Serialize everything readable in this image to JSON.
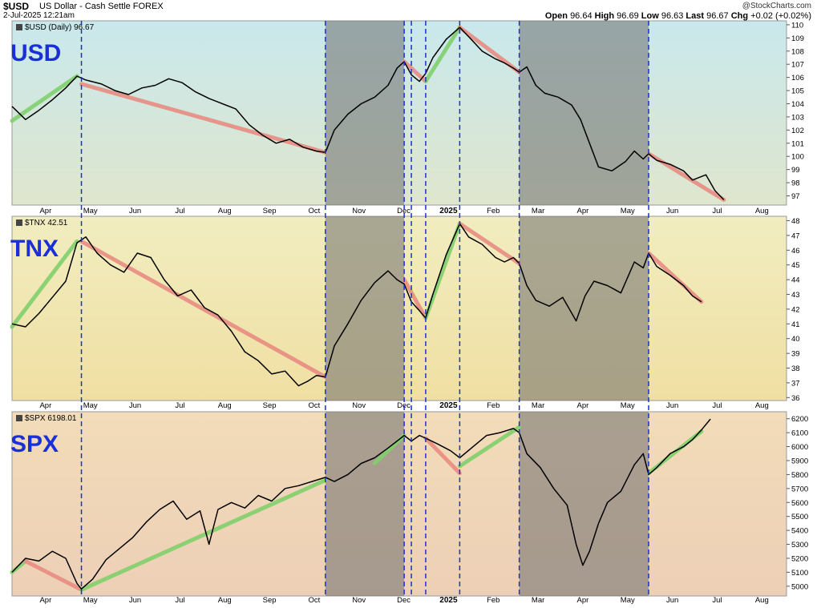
{
  "header": {
    "symbol": "$USD",
    "description": "US Dollar - Cash Settle FOREX",
    "timestamp": "2-Jul-2025 12:21am",
    "credit": "@StockCharts.com",
    "ohlc": {
      "open_label": "Open",
      "open": "96.64",
      "high_label": "High",
      "high": "96.69",
      "low_label": "Low",
      "low": "96.63",
      "last_label": "Last",
      "last": "96.67",
      "chg_label": "Chg",
      "chg": "+0.02 (+0.02%)"
    }
  },
  "x_axis": {
    "labels": [
      "Apr",
      "May",
      "Jun",
      "Jul",
      "Aug",
      "Sep",
      "Oct",
      "Nov",
      "Dec",
      "2025",
      "Feb",
      "Mar",
      "Apr",
      "May",
      "Jun",
      "Jul",
      "Aug"
    ],
    "positions": [
      0.75,
      1.75,
      2.75,
      3.75,
      4.75,
      5.75,
      6.75,
      7.75,
      8.75,
      9.75,
      10.75,
      11.75,
      12.75,
      13.75,
      14.75,
      15.75,
      16.75
    ]
  },
  "shaded_periods": [
    {
      "from": 7.0,
      "to": 8.76
    },
    {
      "from": 11.33,
      "to": 14.22
    }
  ],
  "event_lines": [
    1.55,
    7.0,
    8.76,
    8.92,
    9.24,
    10.0,
    11.33,
    14.22
  ],
  "colors": {
    "shade": "#6e6e6e",
    "event_line": "#1f2fcf",
    "up_trend": "#7fcf6b",
    "down_trend": "#e88c82",
    "price": "#000000",
    "big_label": "#1a2fd6"
  },
  "panels": [
    {
      "id": "usd",
      "big_label": "USD",
      "legend": "$USD (Daily) 96.67",
      "ylim": [
        96.3,
        110.3
      ],
      "yticks": [
        97,
        98,
        99,
        100,
        101,
        102,
        103,
        104,
        105,
        106,
        107,
        108,
        109,
        110
      ],
      "bg": [
        "#c9e8ec",
        "#dfe6cd"
      ],
      "chart_data": {
        "type": "line",
        "x": [
          0.0,
          0.3,
          0.6,
          0.9,
          1.2,
          1.45,
          1.65,
          2.0,
          2.3,
          2.6,
          2.9,
          3.2,
          3.5,
          3.8,
          4.1,
          4.4,
          4.7,
          5.0,
          5.3,
          5.6,
          5.9,
          6.2,
          6.5,
          6.8,
          7.0,
          7.2,
          7.5,
          7.8,
          8.1,
          8.4,
          8.6,
          8.76,
          8.92,
          9.1,
          9.24,
          9.4,
          9.7,
          10.0,
          10.2,
          10.5,
          10.8,
          11.0,
          11.2,
          11.33,
          11.5,
          11.7,
          11.9,
          12.2,
          12.5,
          12.7,
          12.9,
          13.1,
          13.4,
          13.7,
          13.9,
          14.1,
          14.22,
          14.4,
          14.7,
          15.0,
          15.2,
          15.5,
          15.7,
          15.9
        ],
        "y": [
          103.8,
          102.8,
          103.5,
          104.3,
          105.2,
          106.1,
          105.8,
          105.5,
          105.0,
          104.7,
          105.2,
          105.4,
          105.9,
          105.6,
          104.9,
          104.4,
          104.0,
          103.6,
          102.4,
          101.6,
          101.0,
          101.3,
          100.7,
          100.4,
          100.3,
          102.0,
          103.2,
          104.0,
          104.5,
          105.4,
          106.7,
          107.2,
          106.2,
          105.7,
          106.3,
          107.5,
          108.9,
          109.8,
          109.1,
          108.0,
          107.4,
          107.1,
          106.7,
          106.4,
          106.8,
          105.4,
          104.8,
          104.5,
          103.9,
          102.8,
          101.0,
          99.2,
          98.9,
          99.6,
          100.4,
          99.8,
          100.2,
          99.7,
          99.4,
          98.9,
          98.2,
          98.6,
          97.4,
          96.7
        ]
      },
      "trends": [
        {
          "x1": 0.0,
          "y1": 102.7,
          "x2": 1.45,
          "y2": 106.1,
          "dir": "up"
        },
        {
          "x1": 1.55,
          "y1": 105.5,
          "x2": 7.0,
          "y2": 100.3,
          "dir": "down"
        },
        {
          "x1": 8.76,
          "y1": 107.2,
          "x2": 9.24,
          "y2": 105.7,
          "dir": "down"
        },
        {
          "x1": 9.24,
          "y1": 105.7,
          "x2": 10.0,
          "y2": 109.8,
          "dir": "up"
        },
        {
          "x1": 10.0,
          "y1": 109.8,
          "x2": 11.33,
          "y2": 106.4,
          "dir": "down"
        },
        {
          "x1": 14.22,
          "y1": 100.2,
          "x2": 15.9,
          "y2": 96.7,
          "dir": "down"
        }
      ]
    },
    {
      "id": "tnx",
      "big_label": "TNX",
      "legend": "$TNX 42.51",
      "ylim": [
        35.8,
        48.3
      ],
      "yticks": [
        36,
        37,
        38,
        39,
        40,
        41,
        42,
        43,
        44,
        45,
        46,
        47,
        48
      ],
      "bg": [
        "#f1edc0",
        "#f0dfa2"
      ],
      "chart_data": {
        "type": "line",
        "x": [
          0.0,
          0.3,
          0.6,
          0.9,
          1.2,
          1.45,
          1.65,
          1.9,
          2.2,
          2.5,
          2.8,
          3.1,
          3.4,
          3.7,
          4.0,
          4.3,
          4.6,
          4.9,
          5.2,
          5.5,
          5.8,
          6.1,
          6.4,
          6.6,
          6.8,
          7.0,
          7.2,
          7.5,
          7.8,
          8.1,
          8.4,
          8.6,
          8.76,
          8.92,
          9.1,
          9.24,
          9.4,
          9.7,
          10.0,
          10.2,
          10.5,
          10.8,
          11.0,
          11.2,
          11.33,
          11.5,
          11.7,
          12.0,
          12.3,
          12.6,
          12.8,
          13.0,
          13.3,
          13.6,
          13.9,
          14.1,
          14.22,
          14.4,
          14.7,
          15.0,
          15.2,
          15.4
        ],
        "y": [
          41.0,
          40.8,
          41.7,
          42.8,
          43.9,
          46.5,
          46.9,
          45.8,
          45.0,
          44.5,
          45.8,
          45.5,
          44.0,
          42.9,
          43.3,
          42.1,
          41.6,
          40.5,
          39.1,
          38.5,
          37.6,
          37.8,
          36.8,
          37.1,
          37.5,
          37.4,
          39.5,
          41.0,
          42.6,
          43.8,
          44.6,
          44.0,
          43.7,
          42.5,
          41.9,
          41.4,
          43.0,
          45.7,
          47.8,
          46.9,
          46.4,
          45.5,
          45.2,
          45.5,
          45.1,
          43.6,
          42.6,
          42.2,
          42.8,
          41.2,
          42.9,
          43.9,
          43.6,
          43.1,
          45.2,
          44.8,
          45.8,
          44.9,
          44.3,
          43.6,
          42.9,
          42.5
        ]
      },
      "trends": [
        {
          "x1": 0.0,
          "y1": 40.8,
          "x2": 1.45,
          "y2": 46.6,
          "dir": "up"
        },
        {
          "x1": 1.55,
          "y1": 46.6,
          "x2": 7.0,
          "y2": 37.4,
          "dir": "down"
        },
        {
          "x1": 8.76,
          "y1": 44.0,
          "x2": 9.24,
          "y2": 41.4,
          "dir": "down"
        },
        {
          "x1": 9.24,
          "y1": 41.4,
          "x2": 10.0,
          "y2": 47.8,
          "dir": "up"
        },
        {
          "x1": 10.0,
          "y1": 47.8,
          "x2": 11.33,
          "y2": 45.1,
          "dir": "down"
        },
        {
          "x1": 14.22,
          "y1": 45.8,
          "x2": 15.4,
          "y2": 42.5,
          "dir": "down"
        }
      ]
    },
    {
      "id": "spx",
      "big_label": "SPX",
      "legend": "$SPX 6198.01",
      "ylim": [
        4930,
        6250
      ],
      "yticks": [
        5000,
        5100,
        5200,
        5300,
        5400,
        5500,
        5600,
        5700,
        5800,
        5900,
        6000,
        6100,
        6200
      ],
      "bg": [
        "#f2dcb9",
        "#edcfb6"
      ],
      "chart_data": {
        "type": "line",
        "x": [
          0.0,
          0.3,
          0.6,
          0.9,
          1.2,
          1.45,
          1.55,
          1.8,
          2.1,
          2.4,
          2.7,
          3.0,
          3.3,
          3.6,
          3.9,
          4.2,
          4.4,
          4.6,
          4.9,
          5.2,
          5.5,
          5.8,
          6.1,
          6.4,
          6.7,
          7.0,
          7.2,
          7.5,
          7.8,
          8.1,
          8.4,
          8.6,
          8.76,
          8.92,
          9.1,
          9.24,
          9.5,
          9.8,
          10.0,
          10.3,
          10.6,
          10.9,
          11.2,
          11.33,
          11.5,
          11.8,
          12.1,
          12.4,
          12.6,
          12.75,
          12.9,
          13.1,
          13.3,
          13.6,
          13.9,
          14.1,
          14.22,
          14.4,
          14.7,
          15.0,
          15.2,
          15.4,
          15.6
        ],
        "y": [
          5100,
          5200,
          5180,
          5250,
          5200,
          5020,
          4980,
          5050,
          5190,
          5270,
          5350,
          5460,
          5550,
          5610,
          5480,
          5540,
          5300,
          5550,
          5600,
          5560,
          5650,
          5610,
          5700,
          5720,
          5750,
          5780,
          5750,
          5800,
          5880,
          5920,
          5990,
          6040,
          6080,
          6040,
          6080,
          6060,
          6020,
          5970,
          5920,
          6000,
          6080,
          6100,
          6130,
          6100,
          5950,
          5850,
          5700,
          5580,
          5300,
          5150,
          5250,
          5450,
          5600,
          5680,
          5870,
          5950,
          5800,
          5850,
          5950,
          6000,
          6050,
          6120,
          6198
        ]
      },
      "trends": [
        {
          "x1": 0.0,
          "y1": 5100,
          "x2": 0.3,
          "y2": 5180,
          "dir": "up"
        },
        {
          "x1": 0.3,
          "y1": 5180,
          "x2": 1.55,
          "y2": 4975,
          "dir": "down"
        },
        {
          "x1": 1.55,
          "y1": 4975,
          "x2": 7.0,
          "y2": 5760,
          "dir": "up"
        },
        {
          "x1": 8.1,
          "y1": 5880,
          "x2": 8.76,
          "y2": 6080,
          "dir": "up"
        },
        {
          "x1": 9.24,
          "y1": 6060,
          "x2": 10.0,
          "y2": 5810,
          "dir": "down"
        },
        {
          "x1": 10.0,
          "y1": 5860,
          "x2": 11.33,
          "y2": 6140,
          "dir": "up"
        },
        {
          "x1": 14.22,
          "y1": 5810,
          "x2": 15.4,
          "y2": 6110,
          "dir": "up"
        }
      ]
    }
  ]
}
